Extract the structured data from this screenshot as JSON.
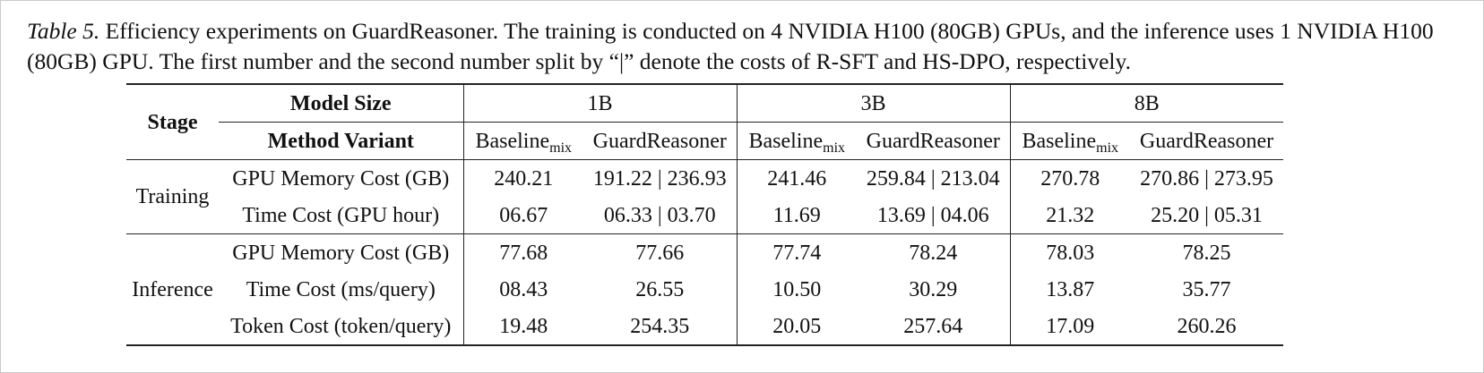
{
  "caption": {
    "label": "Table 5.",
    "text": " Efficiency experiments on GuardReasoner. The training is conducted on 4 NVIDIA H100 (80GB) GPUs, and the inference uses 1 NVIDIA H100 (80GB) GPU. The first number and the second number split by “|” denote the costs of R-SFT and HS-DPO, respectively."
  },
  "table": {
    "stage_header": "Stage",
    "model_size_header": "Model Size",
    "method_variant_header": "Method Variant",
    "sizes": [
      "1B",
      "3B",
      "8B"
    ],
    "variants": [
      {
        "base": "Baseline",
        "sub": "mix"
      },
      {
        "base": "GuardReasoner",
        "sub": ""
      }
    ],
    "groups": [
      {
        "stage": "Training",
        "rows": [
          {
            "metric": "GPU Memory Cost (GB)",
            "values": [
              "240.21",
              "191.22 | 236.93",
              "241.46",
              "259.84 | 213.04",
              "270.78",
              "270.86 | 273.95"
            ]
          },
          {
            "metric": "Time Cost (GPU hour)",
            "values": [
              "06.67",
              "06.33 | 03.70",
              "11.69",
              "13.69 | 04.06",
              "21.32",
              "25.20 | 05.31"
            ]
          }
        ]
      },
      {
        "stage": "Inference",
        "rows": [
          {
            "metric": "GPU Memory Cost (GB)",
            "values": [
              "77.68",
              "77.66",
              "77.74",
              "78.24",
              "78.03",
              "78.25"
            ]
          },
          {
            "metric": "Time Cost (ms/query)",
            "values": [
              "08.43",
              "26.55",
              "10.50",
              "30.29",
              "13.87",
              "35.77"
            ]
          },
          {
            "metric": "Token Cost (token/query)",
            "values": [
              "19.48",
              "254.35",
              "20.05",
              "257.64",
              "17.09",
              "260.26"
            ]
          }
        ]
      }
    ]
  }
}
